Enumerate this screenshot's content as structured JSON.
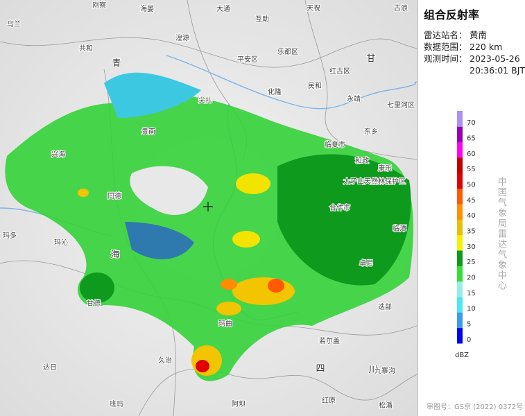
{
  "title": "组合反射率",
  "info": [
    {
      "label": "雷达站名：",
      "values": [
        "黄南"
      ]
    },
    {
      "label": "数据范围：",
      "values": [
        "220 km"
      ]
    },
    {
      "label": "观测时间：",
      "values": [
        "2023-05-26",
        "20:36:01 BJT"
      ]
    }
  ],
  "legend": {
    "unit": "dBZ",
    "ticks": [
      0,
      5,
      10,
      15,
      20,
      25,
      30,
      35,
      40,
      45,
      50,
      55,
      60,
      65,
      70
    ],
    "colors": [
      "#0000f0",
      "#3c9cf0",
      "#50e6f0",
      "#94f0e6",
      "#34e034",
      "#0e9a1c",
      "#f3f000",
      "#e8c000",
      "#ff9000",
      "#ff5a00",
      "#e00000",
      "#c00000",
      "#ff00f0",
      "#9600b4",
      "#ad90f0"
    ]
  },
  "agency": "中国气象局雷达气象中心",
  "approval": "审图号：GS京 (2022) 0372号",
  "places": [
    "乌兰",
    "刚察",
    "海晏",
    "大通",
    "互助",
    "天祝",
    "古浪",
    "共和",
    "青",
    "湟源",
    "乐都区",
    "平安区",
    "民和",
    "红古区",
    "化隆",
    "永靖",
    "七里河区",
    "尖扎",
    "贵南",
    "临夏市",
    "和政",
    "康乐",
    "兴海",
    "太子山天然林保护区",
    "同德",
    "合作市",
    "临潭",
    "玛多",
    "玛沁",
    "海",
    "卓尼",
    "甘德",
    "玛曲",
    "迭部",
    "若尔盖",
    "久治",
    "达日",
    "四",
    "川",
    "九寨沟",
    "班玛",
    "阿坝",
    "红原",
    "松潘",
    "甘",
    "东乡"
  ]
}
